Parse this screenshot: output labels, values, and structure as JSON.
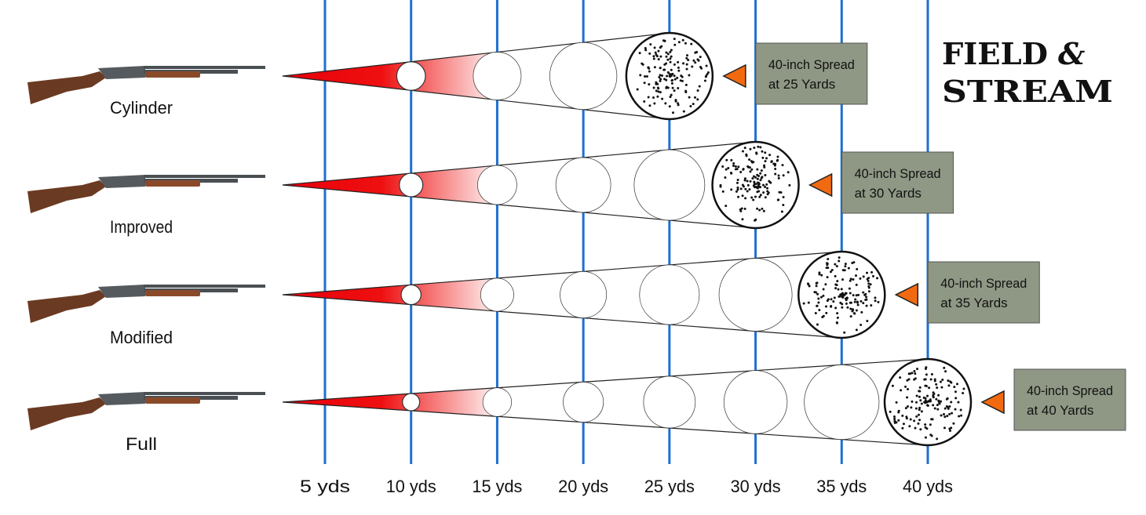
{
  "logo": {
    "line1": "FIELD",
    "ampersand": "&",
    "line2": "STREAM"
  },
  "distance_axis": {
    "ticks": [
      "5 yds",
      "10 yds",
      "15 yds",
      "20 yds",
      "25 yds",
      "30 yds",
      "35 yds",
      "40 yds"
    ],
    "yards": [
      5,
      10,
      15,
      20,
      25,
      30,
      35,
      40
    ],
    "line_color": "#1f6fd1"
  },
  "chokes": [
    {
      "name": "Cylinder",
      "spread_yards": 25,
      "label_line1": "40-inch Spread",
      "label_line2": "at 25 Yards"
    },
    {
      "name": "Improved",
      "spread_yards": 30,
      "label_line1": "40-inch Spread",
      "label_line2": "at 30 Yards"
    },
    {
      "name": "Modified",
      "spread_yards": 35,
      "label_line1": "40-inch Spread",
      "label_line2": "at 35 Yards"
    },
    {
      "name": "Full",
      "spread_yards": 40,
      "label_line1": "40-inch Spread",
      "label_line2": "at 40 Yards"
    }
  ],
  "colors": {
    "cone_red": "#e8000b",
    "marker_orange": "#f26a10",
    "label_box": "#8f9885",
    "stock_wood": "#6b3a22",
    "receiver": "#555a5e"
  }
}
